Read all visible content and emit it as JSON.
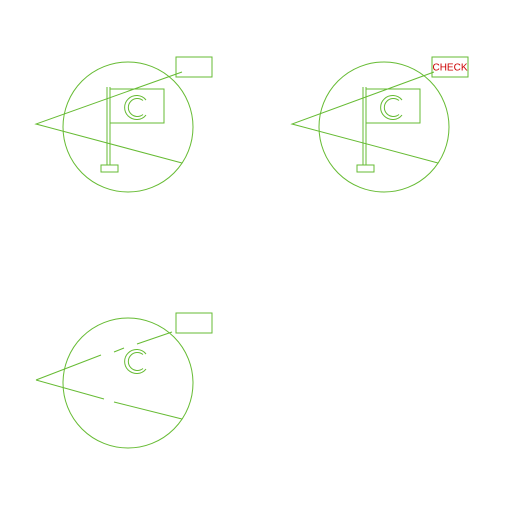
{
  "symbols": [
    {
      "id": "flag-symbol-plain",
      "has_flag": true,
      "label_text": ""
    },
    {
      "id": "flag-symbol-checked",
      "has_flag": true,
      "label_text": "CHECK"
    },
    {
      "id": "crescent-symbol-no-flag",
      "has_flag": false,
      "label_text": ""
    }
  ],
  "colors": {
    "line": "#66bb33",
    "label_text": "#cc0000"
  }
}
